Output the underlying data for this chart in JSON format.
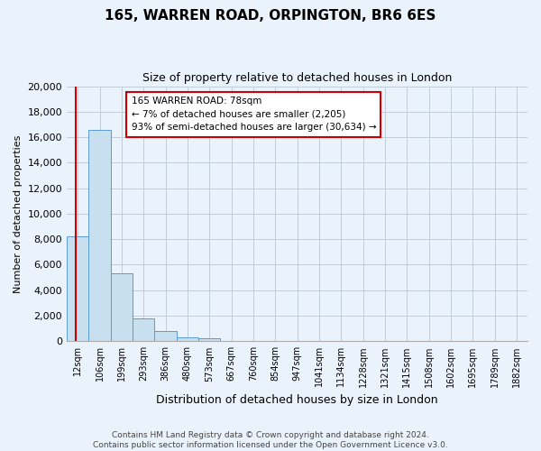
{
  "title": "165, WARREN ROAD, ORPINGTON, BR6 6ES",
  "subtitle": "Size of property relative to detached houses in London",
  "xlabel": "Distribution of detached houses by size in London",
  "ylabel": "Number of detached properties",
  "categories": [
    "12sqm",
    "106sqm",
    "199sqm",
    "293sqm",
    "386sqm",
    "480sqm",
    "573sqm",
    "667sqm",
    "760sqm",
    "854sqm",
    "947sqm",
    "1041sqm",
    "1134sqm",
    "1228sqm",
    "1321sqm",
    "1415sqm",
    "1508sqm",
    "1602sqm",
    "1695sqm",
    "1789sqm",
    "1882sqm"
  ],
  "values": [
    8200,
    16600,
    5300,
    1800,
    800,
    300,
    250,
    0,
    0,
    0,
    0,
    0,
    0,
    0,
    0,
    0,
    0,
    0,
    0,
    0,
    0
  ],
  "bar_color": "#c8dff0",
  "bar_edge_color": "#5b9bd5",
  "vline_color": "#cc0000",
  "vline_x": -0.08,
  "ylim": [
    0,
    20000
  ],
  "yticks": [
    0,
    2000,
    4000,
    6000,
    8000,
    10000,
    12000,
    14000,
    16000,
    18000,
    20000
  ],
  "annotation_title": "165 WARREN ROAD: 78sqm",
  "annotation_line1": "← 7% of detached houses are smaller (2,205)",
  "annotation_line2": "93% of semi-detached houses are larger (30,634) →",
  "footer1": "Contains HM Land Registry data © Crown copyright and database right 2024.",
  "footer2": "Contains public sector information licensed under the Open Government Licence v3.0.",
  "background_color": "#eaf3fb",
  "plot_bg_color": "#eaf3fb",
  "grid_color": "#c0ccd8"
}
